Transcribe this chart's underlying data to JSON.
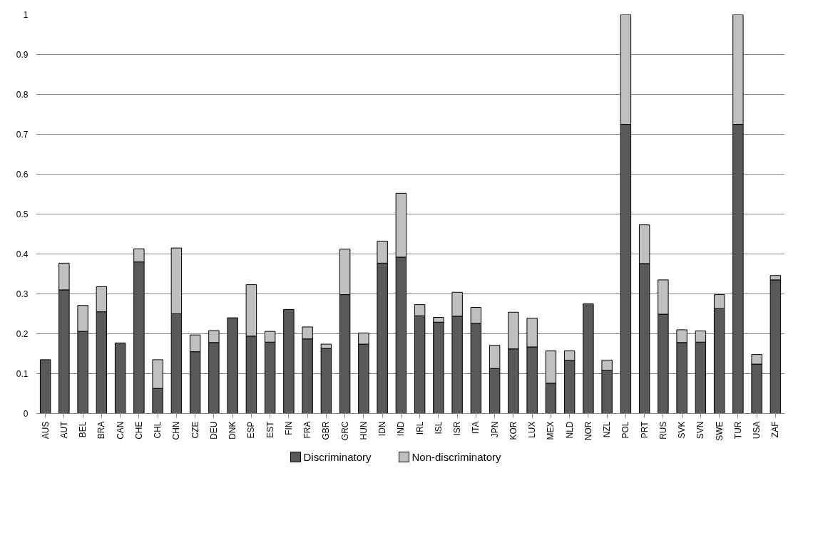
{
  "chart_data": {
    "type": "bar",
    "stacked": true,
    "categories": [
      "AUS",
      "AUT",
      "BEL",
      "BRA",
      "CAN",
      "CHE",
      "CHL",
      "CHN",
      "CZE",
      "DEU",
      "DNK",
      "ESP",
      "EST",
      "FIN",
      "FRA",
      "GBR",
      "GRC",
      "HUN",
      "IDN",
      "IND",
      "IRL",
      "ISL",
      "ISR",
      "ITA",
      "JPN",
      "KOR",
      "LUX",
      "MEX",
      "NLD",
      "NOR",
      "NZL",
      "POL",
      "PRT",
      "RUS",
      "SVK",
      "SVN",
      "SWE",
      "TUR",
      "USA",
      "ZAF"
    ],
    "series": [
      {
        "name": "Discriminatory",
        "color": "#595959",
        "values": [
          0.135,
          0.31,
          0.206,
          0.255,
          0.177,
          0.38,
          0.063,
          0.25,
          0.155,
          0.178,
          0.24,
          0.194,
          0.179,
          0.261,
          0.187,
          0.163,
          0.298,
          0.174,
          0.377,
          0.392,
          0.245,
          0.229,
          0.244,
          0.226,
          0.113,
          0.162,
          0.167,
          0.076,
          0.133,
          0.275,
          0.108,
          0.725,
          0.376,
          0.249,
          0.178,
          0.179,
          0.263,
          0.725,
          0.124,
          0.335
        ]
      },
      {
        "name": "Non-discriminatory",
        "color": "#bfbfbf",
        "values": [
          0,
          0.067,
          0.065,
          0.063,
          0,
          0.033,
          0.072,
          0.165,
          0.042,
          0.03,
          0,
          0.129,
          0.027,
          0,
          0.03,
          0.011,
          0.114,
          0.028,
          0.055,
          0.16,
          0.028,
          0.012,
          0.06,
          0.04,
          0.058,
          0.092,
          0.072,
          0.081,
          0.024,
          0,
          0.026,
          0.275,
          0.097,
          0.086,
          0.032,
          0.028,
          0.035,
          0.275,
          0.024,
          0.011
        ]
      }
    ],
    "ylim": [
      0,
      1
    ],
    "yticks": [
      0,
      0.1,
      0.2,
      0.3,
      0.4,
      0.5,
      0.6,
      0.7,
      0.8,
      0.9,
      1
    ],
    "grid": "y",
    "legend": "bottom"
  }
}
